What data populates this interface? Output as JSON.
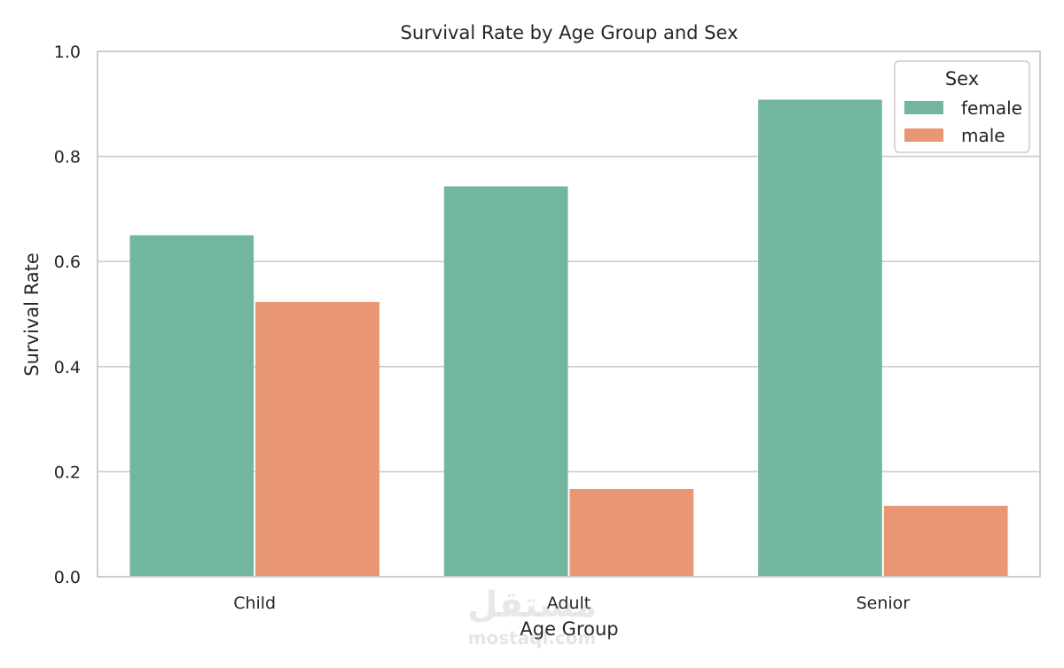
{
  "chart_data": {
    "type": "bar",
    "title": "Survival Rate by Age Group and Sex",
    "xlabel": "Age Group",
    "ylabel": "Survival Rate",
    "categories": [
      "Child",
      "Adult",
      "Senior"
    ],
    "series": [
      {
        "name": "female",
        "values": [
          0.65,
          0.743,
          0.908
        ],
        "color": "#73b6a0"
      },
      {
        "name": "male",
        "values": [
          0.523,
          0.167,
          0.135
        ],
        "color": "#e89673"
      }
    ],
    "ylim": [
      0,
      1.0
    ],
    "yticks": [
      0.0,
      0.2,
      0.4,
      0.6,
      0.8,
      1.0
    ],
    "ytick_labels": [
      "0.0",
      "0.2",
      "0.4",
      "0.6",
      "0.8",
      "1.0"
    ],
    "legend": {
      "title": "Sex",
      "placement": "top-right"
    },
    "grid": "horizontal"
  },
  "watermark": {
    "arabic": "مستقل",
    "latin": "mostaql.com"
  }
}
